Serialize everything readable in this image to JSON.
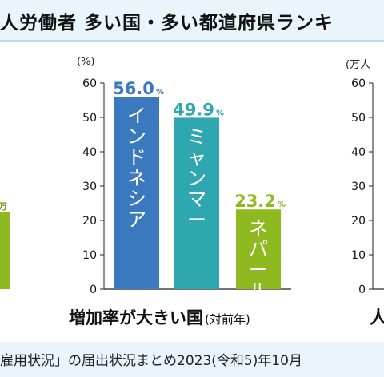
{
  "header": {
    "title": "人労働者  多い国・多い都道府県ランキ"
  },
  "center_chart": {
    "unit": "(%)",
    "title": "増加率が大きい国",
    "subtitle": "(対前年)"
  },
  "right_chart": {
    "unit": "(万人",
    "title_fragment": "人"
  },
  "left_fragment": {
    "label_fragment": "万"
  },
  "footer": {
    "source": "雇用状況」の届出状況まとめ2023(令和5)年10月"
  },
  "colors": {
    "indonesia": "#3a79bd",
    "myanmar": "#2ea7b0",
    "nepal": "#8fba1f",
    "axis": "#222222",
    "header_band": "#eaf4fb"
  },
  "chart_data": [
    {
      "type": "bar",
      "title": "増加率が大きい国",
      "subtitle": "(対前年)",
      "ylabel": "(%)",
      "ylim": [
        0,
        60
      ],
      "yticks": [
        0,
        10,
        20,
        30,
        40,
        50,
        60
      ],
      "categories": [
        "インドネシア",
        "ミャンマー",
        "ネパール"
      ],
      "values": [
        56.0,
        49.9,
        23.2
      ],
      "value_labels": [
        "56.0",
        "49.9",
        "23.2"
      ],
      "value_unit": "%"
    },
    {
      "type": "bar",
      "ylabel": "(万人",
      "ylim": [
        0,
        60
      ],
      "yticks": [
        0,
        10,
        20,
        30,
        40,
        50,
        60
      ]
    }
  ]
}
